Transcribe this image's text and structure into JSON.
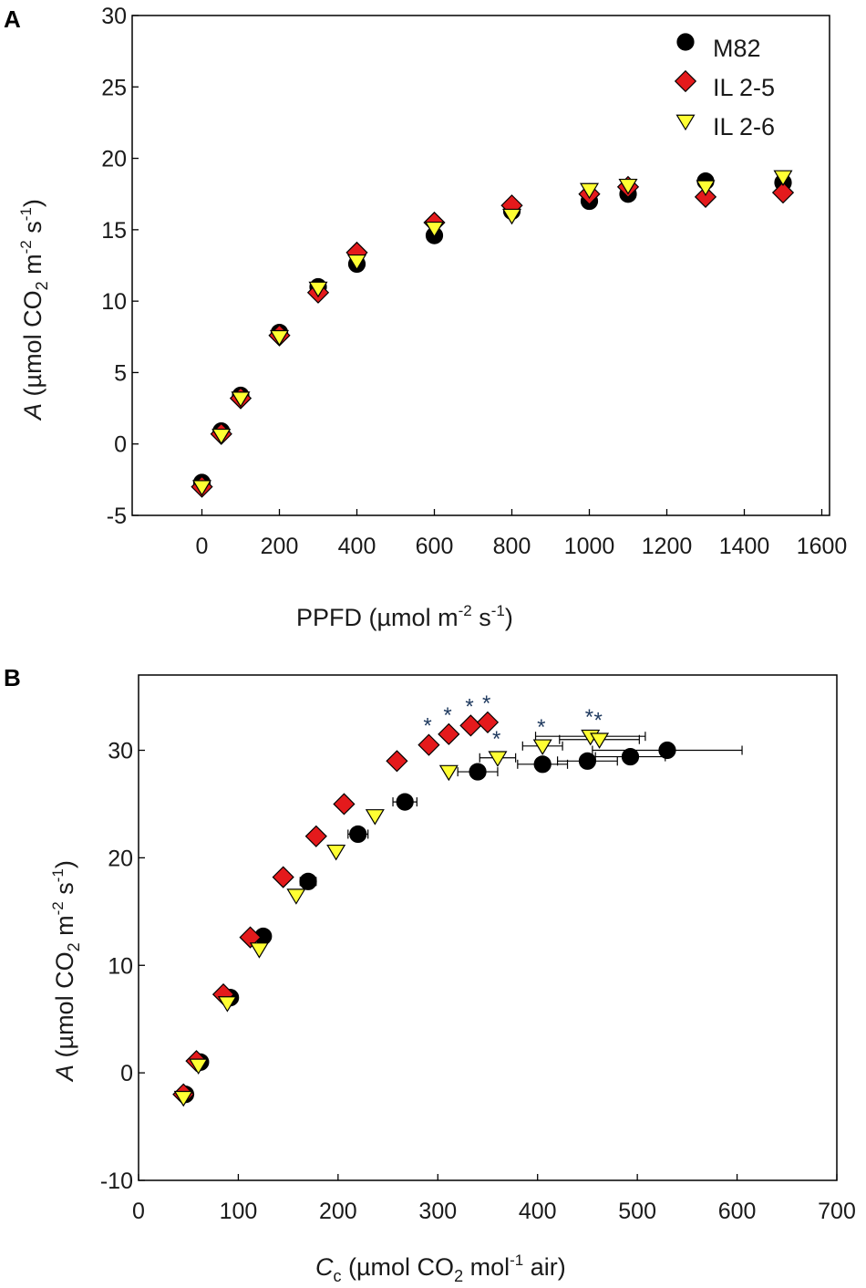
{
  "colors": {
    "M82": "#000000",
    "IL 2-5": "#e41a1c",
    "IL 2-6": "#ffff33",
    "frame": "#000000"
  },
  "chart_data": [
    {
      "panel": "A",
      "type": "scatter",
      "ylabel_italic": "A",
      "ylabel_rest": " (µmol CO",
      "ylabel_sub": "2",
      "ylabel_mid": " m",
      "ylabel_sup1": "-2",
      "ylabel_s": " s",
      "ylabel_sup2": "-1",
      "ylabel_close": ")",
      "xlabel_main": "PPFD (µmol m",
      "xlabel_sup1": "-2",
      "xlabel_s": " s",
      "xlabel_sup2": "-1",
      "xlabel_close": ")",
      "xlim": [
        -180,
        1620
      ],
      "ylim": [
        -5,
        30
      ],
      "xticks": [
        0,
        200,
        400,
        600,
        800,
        1000,
        1200,
        1400,
        1600
      ],
      "yticks": [
        -5,
        0,
        5,
        10,
        15,
        20,
        25,
        30
      ],
      "legend": [
        "M82",
        "IL 2-5",
        "IL 2-6"
      ],
      "series": [
        {
          "name": "M82",
          "marker": "circle",
          "points": [
            {
              "x": 0,
              "y": -2.7
            },
            {
              "x": 50,
              "y": 0.9
            },
            {
              "x": 100,
              "y": 3.4
            },
            {
              "x": 200,
              "y": 7.8
            },
            {
              "x": 300,
              "y": 11.0
            },
            {
              "x": 400,
              "y": 12.6
            },
            {
              "x": 600,
              "y": 14.6
            },
            {
              "x": 800,
              "y": 16.3
            },
            {
              "x": 1000,
              "y": 17.0
            },
            {
              "x": 1100,
              "y": 17.5
            },
            {
              "x": 1300,
              "y": 18.4
            },
            {
              "x": 1500,
              "y": 18.3
            }
          ]
        },
        {
          "name": "IL 2-5",
          "marker": "diamond",
          "points": [
            {
              "x": 0,
              "y": -3.0
            },
            {
              "x": 50,
              "y": 0.7
            },
            {
              "x": 100,
              "y": 3.2
            },
            {
              "x": 200,
              "y": 7.6
            },
            {
              "x": 300,
              "y": 10.6
            },
            {
              "x": 400,
              "y": 13.4
            },
            {
              "x": 600,
              "y": 15.5
            },
            {
              "x": 800,
              "y": 16.7
            },
            {
              "x": 1000,
              "y": 17.5
            },
            {
              "x": 1100,
              "y": 18.0
            },
            {
              "x": 1300,
              "y": 17.3
            },
            {
              "x": 1500,
              "y": 17.6
            }
          ]
        },
        {
          "name": "IL 2-6",
          "marker": "triangle-down",
          "points": [
            {
              "x": 0,
              "y": -3.0
            },
            {
              "x": 50,
              "y": 0.6
            },
            {
              "x": 100,
              "y": 3.2
            },
            {
              "x": 200,
              "y": 7.5
            },
            {
              "x": 300,
              "y": 10.9
            },
            {
              "x": 400,
              "y": 12.8
            },
            {
              "x": 600,
              "y": 15.1
            },
            {
              "x": 800,
              "y": 16.0
            },
            {
              "x": 1000,
              "y": 17.8
            },
            {
              "x": 1100,
              "y": 18.1
            },
            {
              "x": 1300,
              "y": 18.0
            },
            {
              "x": 1500,
              "y": 18.7
            }
          ]
        }
      ]
    },
    {
      "panel": "B",
      "type": "scatter",
      "ylabel_italic": "A",
      "ylabel_rest": " (µmol CO",
      "ylabel_sub": "2",
      "ylabel_mid": " m",
      "ylabel_sup1": "-2",
      "ylabel_s": " s",
      "ylabel_sup2": "-1",
      "ylabel_close": ")",
      "xlabel_italic": "C",
      "xlabel_sub_c": "c",
      "xlabel_main": " (µmol CO",
      "xlabel_sub2": "2",
      "xlabel_mol": " mol",
      "xlabel_sup": "-1",
      "xlabel_close": " air)",
      "xlim": [
        0,
        700
      ],
      "ylim": [
        -10,
        37
      ],
      "xticks": [
        0,
        100,
        200,
        300,
        400,
        500,
        600,
        700
      ],
      "yticks": [
        -10,
        0,
        10,
        20,
        30
      ],
      "annotation": "*",
      "series": [
        {
          "name": "M82",
          "marker": "circle",
          "points": [
            {
              "x": 47,
              "y": -2.0
            },
            {
              "x": 62,
              "y": 1.0
            },
            {
              "x": 92,
              "y": 7.0
            },
            {
              "x": 125,
              "y": 12.7
            },
            {
              "x": 170,
              "y": 17.8,
              "xerr": 8
            },
            {
              "x": 220,
              "y": 22.2,
              "xerr": 10
            },
            {
              "x": 267,
              "y": 25.2,
              "xerr": 12
            },
            {
              "x": 340,
              "y": 28.0,
              "xerr": 20
            },
            {
              "x": 405,
              "y": 28.7,
              "xerr": 25
            },
            {
              "x": 450,
              "y": 29.0,
              "xerr": 30
            },
            {
              "x": 493,
              "y": 29.4,
              "xerr": 35
            },
            {
              "x": 530,
              "y": 30.0,
              "xerr": 75
            }
          ]
        },
        {
          "name": "IL 2-5",
          "marker": "diamond",
          "points": [
            {
              "x": 45,
              "y": -2.0
            },
            {
              "x": 58,
              "y": 1.1
            },
            {
              "x": 85,
              "y": 7.3
            },
            {
              "x": 112,
              "y": 12.6
            },
            {
              "x": 145,
              "y": 18.2
            },
            {
              "x": 178,
              "y": 22.0
            },
            {
              "x": 206,
              "y": 25.0
            },
            {
              "x": 259,
              "y": 29.0
            },
            {
              "x": 291,
              "y": 30.5,
              "star": true
            },
            {
              "x": 311,
              "y": 31.5,
              "star": true
            },
            {
              "x": 333,
              "y": 32.3,
              "star": true
            },
            {
              "x": 350,
              "y": 32.6,
              "star": true
            }
          ]
        },
        {
          "name": "IL 2-6",
          "marker": "triangle-down",
          "points": [
            {
              "x": 45,
              "y": -2.3
            },
            {
              "x": 60,
              "y": 0.7
            },
            {
              "x": 89,
              "y": 6.5
            },
            {
              "x": 121,
              "y": 11.5
            },
            {
              "x": 158,
              "y": 16.5
            },
            {
              "x": 198,
              "y": 20.6
            },
            {
              "x": 237,
              "y": 23.9
            },
            {
              "x": 311,
              "y": 28.0
            },
            {
              "x": 360,
              "y": 29.3,
              "star": true,
              "xerr": 18
            },
            {
              "x": 405,
              "y": 30.4,
              "star": true,
              "xerr": 20
            },
            {
              "x": 453,
              "y": 31.3,
              "star": true,
              "xerr": 55
            },
            {
              "x": 462,
              "y": 31.0,
              "star": true,
              "xerr": 40
            }
          ]
        }
      ]
    }
  ]
}
